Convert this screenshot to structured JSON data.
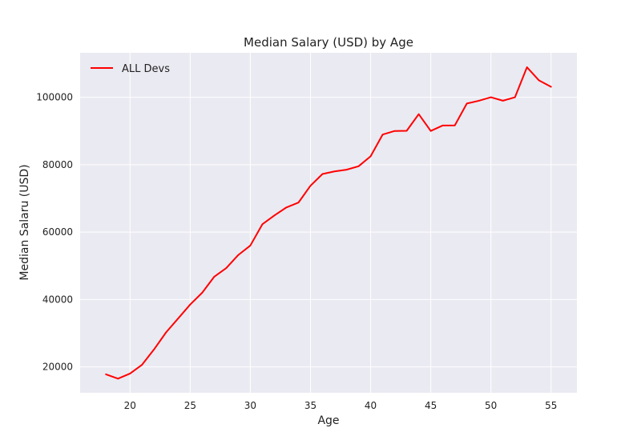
{
  "chart_data": {
    "type": "line",
    "title": "Median Salary (USD) by Age",
    "xlabel": "Age",
    "ylabel": "Median Salaru (USD)",
    "xlim": [
      15.85,
      57.15
    ],
    "ylim": [
      12300,
      113200
    ],
    "xticks": [
      20,
      25,
      30,
      35,
      40,
      45,
      50,
      55
    ],
    "yticks": [
      20000,
      40000,
      60000,
      80000,
      100000
    ],
    "grid": true,
    "legend_position": "top-left",
    "x": [
      18,
      19,
      20,
      21,
      22,
      23,
      24,
      25,
      26,
      27,
      28,
      29,
      30,
      31,
      32,
      33,
      34,
      35,
      36,
      37,
      38,
      39,
      40,
      41,
      42,
      43,
      44,
      45,
      46,
      47,
      48,
      49,
      50,
      51,
      52,
      53,
      54,
      55
    ],
    "series": [
      {
        "name": "ALL Devs",
        "color": "#ff0000",
        "values": [
          17784,
          16500,
          18012,
          20628,
          25206,
          30252,
          34368,
          38496,
          42000,
          46752,
          49320,
          53200,
          56000,
          62316,
          64928,
          67317,
          68748,
          73752,
          77232,
          78000,
          78508,
          79536,
          82488,
          88935,
          90000,
          90056,
          95000,
          90000,
          91633,
          91660,
          98150,
          98964,
          100000,
          98988,
          100000,
          108923,
          105000,
          103117
        ]
      }
    ]
  }
}
